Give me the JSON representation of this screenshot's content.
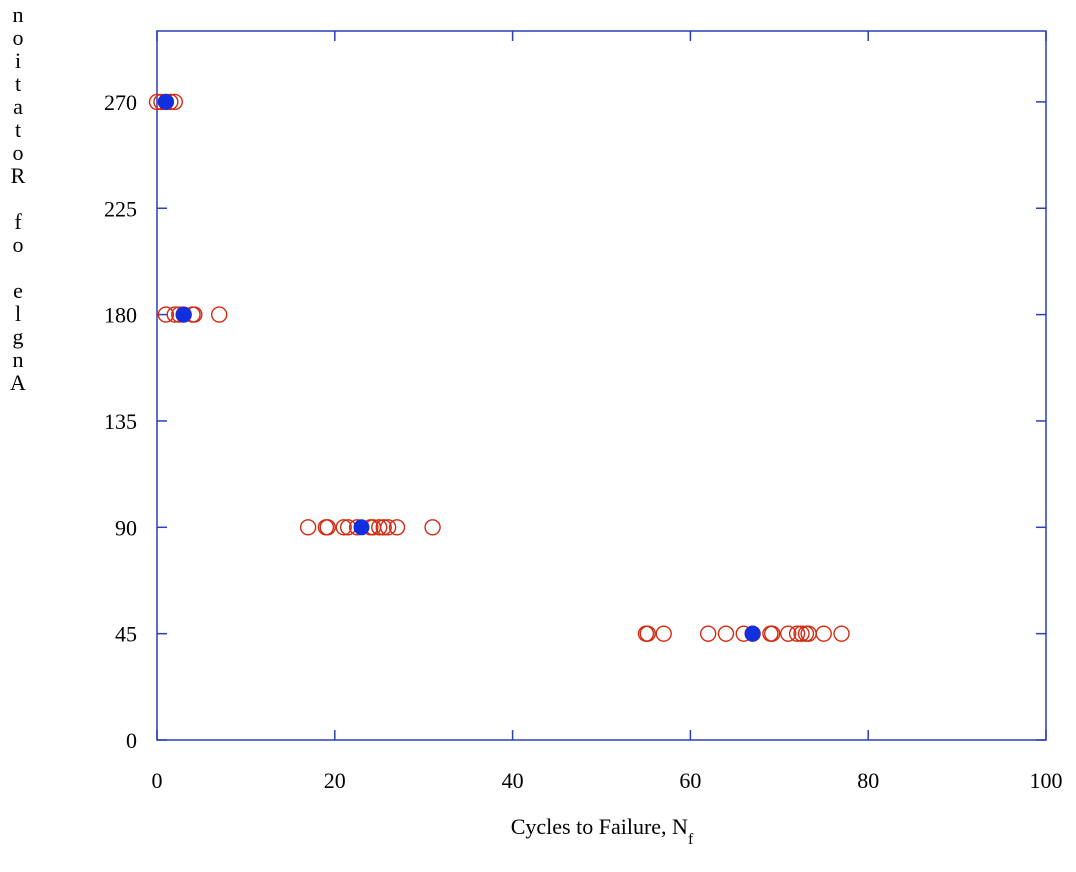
{
  "colors": {
    "axis": "#2a3fb8",
    "open_marker": "#d42a10",
    "mean_marker": "#1030e0",
    "text": "#000000"
  },
  "chart_data": {
    "type": "scatter",
    "xlabel": "Cycles to Failure, N",
    "xlabel_subscript": "f",
    "ylabel": "Angle of Rotation",
    "ylabel_rendering": "vertical-reversed-characters",
    "xlim": [
      0,
      100
    ],
    "ylim": [
      0,
      300
    ],
    "x_ticks": [
      0,
      20,
      40,
      60,
      80,
      100
    ],
    "x_tick_labels": [
      "0",
      "20",
      "40",
      "60",
      "80",
      "100"
    ],
    "y_ticks": [
      0,
      45,
      90,
      135,
      180,
      225,
      270
    ],
    "y_tick_labels": [
      "0",
      "45",
      "90",
      "135",
      "180",
      "225",
      "270"
    ],
    "grid": false,
    "legend": "none",
    "series": [
      {
        "marker": "open-circle",
        "points": [
          [
            0,
            270
          ],
          [
            0.5,
            270
          ],
          [
            1,
            270
          ],
          [
            1.5,
            270
          ],
          [
            2,
            270
          ],
          [
            1,
            180
          ],
          [
            2,
            180
          ],
          [
            2.5,
            180
          ],
          [
            3,
            180
          ],
          [
            4,
            180
          ],
          [
            4.2,
            180
          ],
          [
            7,
            180
          ],
          [
            17,
            90
          ],
          [
            19,
            90
          ],
          [
            19.2,
            90
          ],
          [
            21,
            90
          ],
          [
            21.5,
            90
          ],
          [
            22.5,
            90
          ],
          [
            24,
            90
          ],
          [
            24.3,
            90
          ],
          [
            25,
            90
          ],
          [
            25.5,
            90
          ],
          [
            26,
            90
          ],
          [
            27,
            90
          ],
          [
            31,
            90
          ],
          [
            55,
            45
          ],
          [
            55.2,
            45
          ],
          [
            57,
            45
          ],
          [
            62,
            45
          ],
          [
            64,
            45
          ],
          [
            66,
            45
          ],
          [
            67,
            45
          ],
          [
            69,
            45
          ],
          [
            69.2,
            45
          ],
          [
            71,
            45
          ],
          [
            72,
            45
          ],
          [
            72.5,
            45
          ],
          [
            73,
            45
          ],
          [
            73.3,
            45
          ],
          [
            75,
            45
          ],
          [
            77,
            45
          ]
        ]
      },
      {
        "marker": "filled-circle",
        "points": [
          [
            1,
            270
          ],
          [
            3,
            180
          ],
          [
            23,
            90
          ],
          [
            67,
            45
          ]
        ]
      }
    ]
  }
}
